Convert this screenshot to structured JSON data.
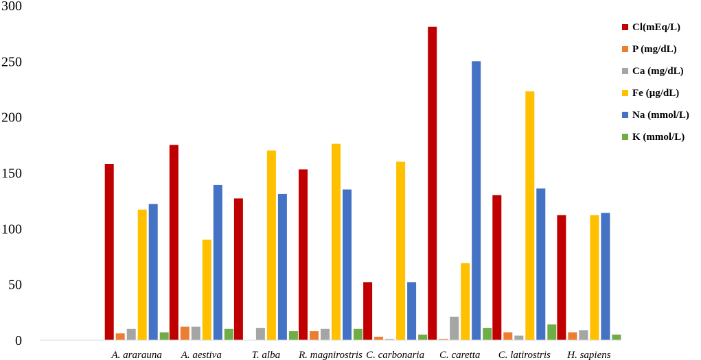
{
  "chart_data": {
    "type": "bar",
    "title": "",
    "xlabel": "",
    "ylabel": "",
    "ylim": [
      0,
      300
    ],
    "yticks": [
      0,
      50,
      100,
      150,
      200,
      250,
      300
    ],
    "grid": false,
    "legend_position": "right",
    "categories": [
      "",
      "A. ararauna",
      "A. aestiva",
      "T. alba",
      "R. magnirostris",
      "C. carbonaria",
      "C. caretta",
      "C. latirostris",
      "H. sapiens"
    ],
    "series": [
      {
        "name": "Cl(mEq/L)",
        "color": "#C00000",
        "values": [
          null,
          158,
          175,
          127,
          153,
          52,
          281,
          130,
          112
        ]
      },
      {
        "name": "P (mg/dL)",
        "color": "#ED7D31",
        "values": [
          null,
          6,
          12,
          0,
          8,
          3,
          1,
          7,
          7
        ]
      },
      {
        "name": "Ca (mg/dL)",
        "color": "#A5A5A5",
        "values": [
          null,
          10,
          12,
          11,
          10,
          1,
          21,
          4,
          9
        ]
      },
      {
        "name": "Fe (µg/dL)",
        "color": "#FFC000",
        "values": [
          null,
          117,
          90,
          170,
          176,
          160,
          69,
          223,
          112
        ]
      },
      {
        "name": "Na (mmol/L)",
        "color": "#4472C4",
        "values": [
          null,
          122,
          139,
          131,
          135,
          52,
          250,
          136,
          114
        ]
      },
      {
        "name": "K (mmol/L)",
        "color": "#70AD47",
        "values": [
          null,
          7,
          10,
          8,
          10,
          5,
          11,
          14,
          5
        ]
      }
    ]
  }
}
